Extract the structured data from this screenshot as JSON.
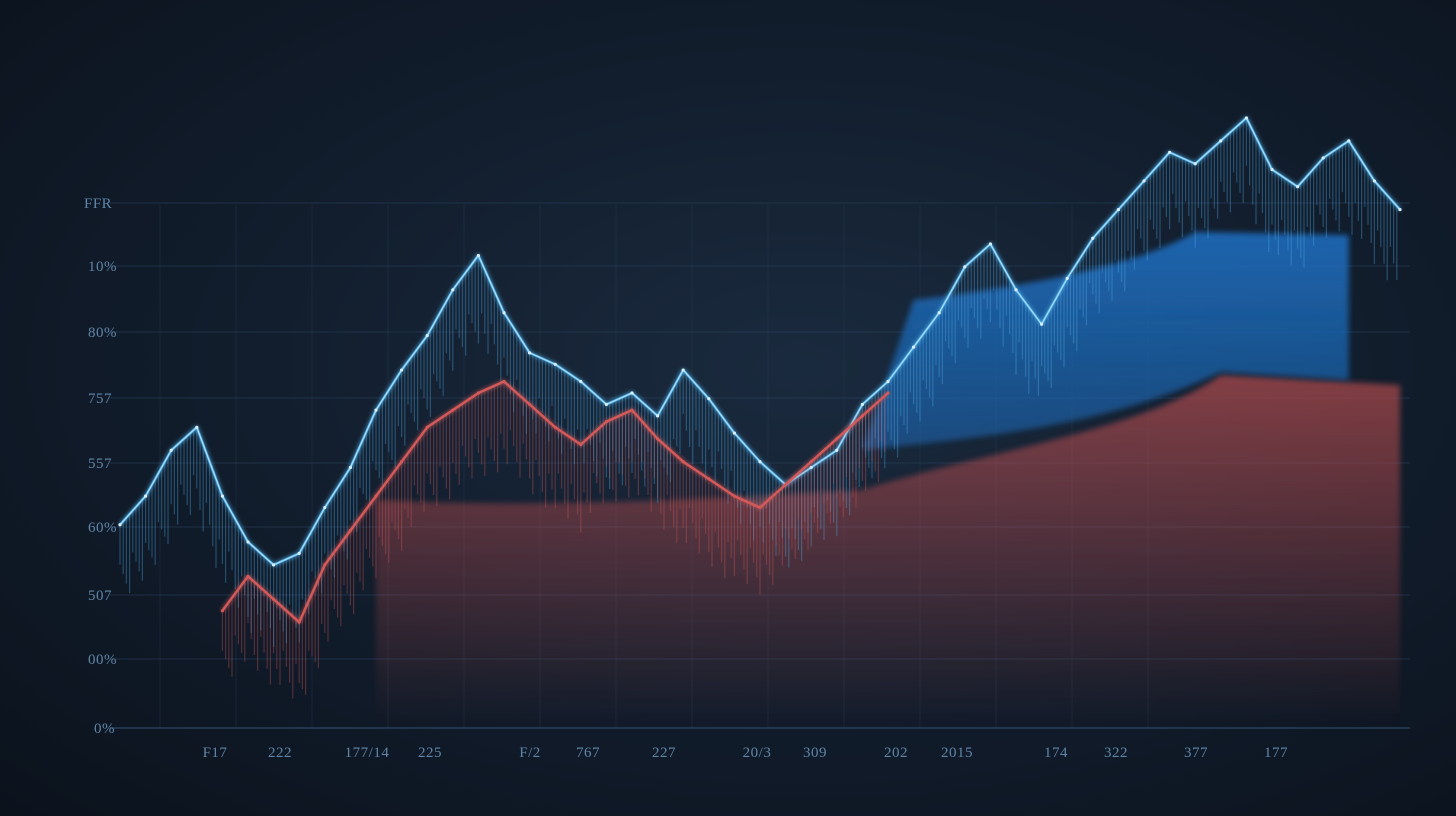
{
  "chart_data": {
    "type": "line",
    "title": "",
    "xlabel": "",
    "ylabel": "",
    "y_tick_labels": [
      "FFR",
      "10%",
      "80%",
      "757",
      "557",
      "60%",
      "507",
      "00%",
      "0%"
    ],
    "x_tick_labels": [
      "F17",
      "222",
      "177/14",
      "225",
      "F/2",
      "767",
      "227",
      "20/3",
      "309",
      "202",
      "2015",
      "174",
      "322",
      "377",
      "177"
    ],
    "grid": true,
    "legend": "none",
    "colors": {
      "blue_line": "#4fb0e8",
      "blue_highlight": "#d8f0ff",
      "red_line": "#d45a5a",
      "blue_band": "#1a5fa8",
      "red_band": "#b04848",
      "grid": "#2a4460",
      "axis_text": "#5f86a8"
    },
    "xlim": [
      0,
      100
    ],
    "ylim": [
      0,
      100
    ],
    "series": [
      {
        "color": "#4fb0e8",
        "x": [
          0,
          2,
          4,
          6,
          8,
          10,
          12,
          14,
          16,
          18,
          20,
          22,
          24,
          26,
          28,
          30,
          32,
          34,
          36,
          38,
          40,
          42,
          44,
          46,
          48,
          50,
          52,
          54,
          56,
          58,
          60,
          62,
          64,
          66,
          68,
          70,
          72,
          74,
          76,
          78,
          80,
          82,
          84,
          86,
          88,
          90,
          92,
          94,
          96,
          98,
          100
        ],
        "values": [
          25,
          30,
          38,
          42,
          30,
          22,
          18,
          20,
          28,
          35,
          45,
          52,
          58,
          66,
          72,
          62,
          55,
          53,
          50,
          46,
          48,
          44,
          52,
          47,
          41,
          36,
          32,
          35,
          38,
          46,
          50,
          56,
          62,
          70,
          74,
          66,
          60,
          68,
          75,
          80,
          85,
          90,
          88,
          92,
          96,
          87,
          84,
          89,
          92,
          85,
          80
        ]
      },
      {
        "color": "#d45a5a",
        "x": [
          8,
          10,
          12,
          14,
          16,
          18,
          20,
          22,
          24,
          26,
          28,
          30,
          32,
          34,
          36,
          38,
          40,
          42,
          44,
          46,
          48,
          50,
          52,
          54,
          56,
          58,
          60
        ],
        "values": [
          10,
          16,
          12,
          8,
          18,
          24,
          30,
          36,
          42,
          45,
          48,
          50,
          46,
          42,
          39,
          43,
          45,
          40,
          36,
          33,
          30,
          28,
          32,
          36,
          40,
          44,
          48
        ]
      }
    ]
  }
}
